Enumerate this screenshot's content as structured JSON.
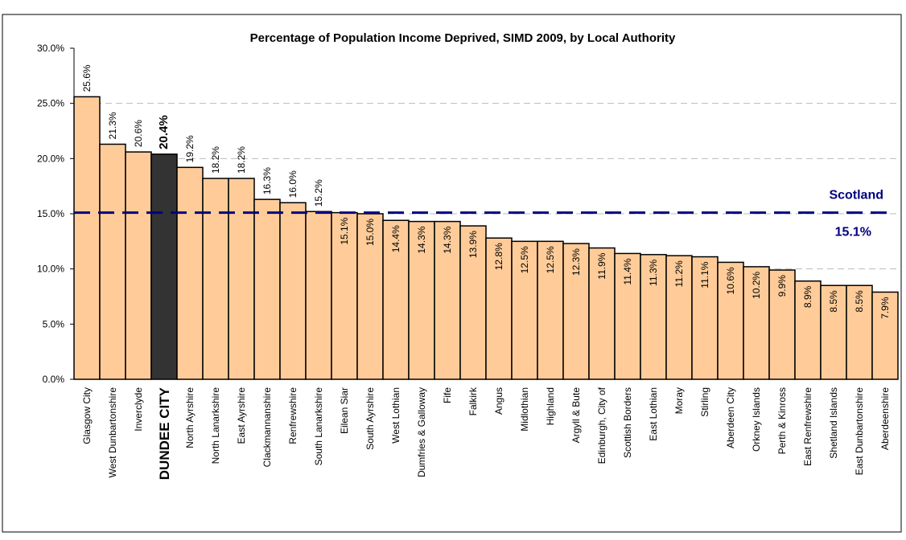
{
  "chart_data": {
    "type": "bar",
    "title": "Percentage of Population Income Deprived, SIMD 2009, by Local Authority",
    "categories": [
      "Glasgow City",
      "West Dunbartonshire",
      "Inverclyde",
      "DUNDEE CITY",
      "North Ayrshire",
      "North Lanarkshire",
      "East Ayrshire",
      "Clackmannanshire",
      "Renfrewshire",
      "South Lanarkshire",
      "Eilean Siar",
      "South Ayrshire",
      "West Lothian",
      "Dumfries & Galloway",
      "Fife",
      "Falkirk",
      "Angus",
      "Midlothian",
      "Highland",
      "Argyll & Bute",
      "Edinburgh, City of",
      "Scottish Borders",
      "East Lothian",
      "Moray",
      "Stirling",
      "Aberdeen City",
      "Orkney Islands",
      "Perth & Kinross",
      "East Renfrewshire",
      "Shetland Islands",
      "East Dunbartonshire",
      "Aberdeenshire"
    ],
    "values": [
      25.6,
      21.3,
      20.6,
      20.4,
      19.2,
      18.2,
      18.2,
      16.3,
      16.0,
      15.2,
      15.1,
      15.0,
      14.4,
      14.3,
      14.3,
      13.9,
      12.8,
      12.5,
      12.5,
      12.3,
      11.9,
      11.4,
      11.3,
      11.2,
      11.1,
      10.6,
      10.2,
      9.9,
      8.9,
      8.5,
      8.5,
      7.9
    ],
    "value_labels": [
      "25.6%",
      "21.3%",
      "20.6%",
      "20.4%",
      "19.2%",
      "18.2%",
      "18.2%",
      "16.3%",
      "16.0%",
      "15.2%",
      "15.1%",
      "15.0%",
      "14.4%",
      "14.3%",
      "14.3%",
      "13.9%",
      "12.8%",
      "12.5%",
      "12.5%",
      "12.3%",
      "11.9%",
      "11.4%",
      "11.3%",
      "11.2%",
      "11.1%",
      "10.6%",
      "10.2%",
      "9.9%",
      "8.9%",
      "8.5%",
      "8.5%",
      "7.9%"
    ],
    "color": "#FFCC99",
    "colors": [
      "#FFCC99",
      "#FFCC99",
      "#FFCC99",
      "#333333",
      "#FFCC99",
      "#FFCC99",
      "#FFCC99",
      "#FFCC99",
      "#FFCC99",
      "#FFCC99",
      "#FFCC99",
      "#FFCC99",
      "#FFCC99",
      "#FFCC99",
      "#FFCC99",
      "#FFCC99",
      "#FFCC99",
      "#FFCC99",
      "#FFCC99",
      "#FFCC99",
      "#FFCC99",
      "#FFCC99",
      "#FFCC99",
      "#FFCC99",
      "#FFCC99",
      "#FFCC99",
      "#FFCC99",
      "#FFCC99",
      "#FFCC99",
      "#FFCC99",
      "#FFCC99",
      "#FFCC99"
    ],
    "ylim": [
      0,
      30
    ],
    "yticks": [
      {
        "value": 0,
        "label": "0.0%"
      },
      {
        "value": 5,
        "label": "5.0%"
      },
      {
        "value": 10,
        "label": "10.0%"
      },
      {
        "value": 15,
        "label": "15.0%"
      },
      {
        "value": 20,
        "label": "20.0%"
      },
      {
        "value": 25,
        "label": "25.0%"
      },
      {
        "value": 30,
        "label": "30.0%"
      }
    ],
    "grid": true,
    "reference_line": {
      "name": "Scotland",
      "value": 15.1,
      "value_label": "15.1%",
      "color": "#000080"
    }
  }
}
